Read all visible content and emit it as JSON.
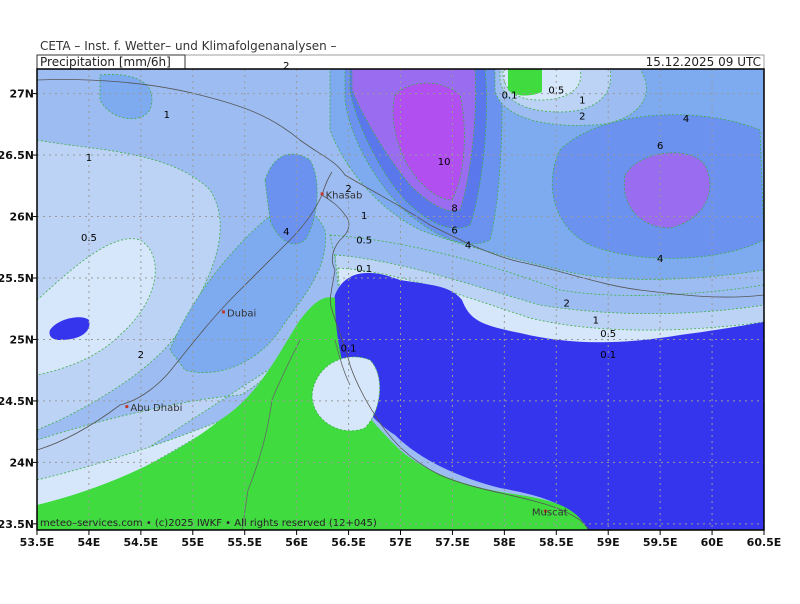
{
  "header": {
    "institute": "CETA – Inst. f. Wetter– und Klimafolgenanalysen –",
    "parameter": "Precipitation [mm/6h]",
    "datetime": "15.12.2025 09 UTC"
  },
  "footer": {
    "credit": "meteo–services.com • (c)2025 IWKF • All rights reserved (12+045)"
  },
  "axes": {
    "lon_ticks": [
      "53.5E",
      "54E",
      "54.5E",
      "55E",
      "55.5E",
      "56E",
      "56.5E",
      "57E",
      "57.5E",
      "58E",
      "58.5E",
      "59E",
      "59.5E",
      "60E",
      "60.5E"
    ],
    "lat_ticks": [
      "27N",
      "26.5N",
      "26N",
      "25.5N",
      "25N",
      "24.5N",
      "24N",
      "23.5N"
    ]
  },
  "colors": {
    "lt_0_1": "#3fdb3f",
    "r0_1_0_5": "#d6e6fb",
    "r0_5_1": "#bcd3f5",
    "r1_2": "#9dbdf2",
    "r2_4": "#7eaaf0",
    "r4_6": "#6b92ee",
    "r6_8": "#5a78ec",
    "r8_10": "#9a6cf0",
    "gt_10": "#b24ff0",
    "heavy_blue": "#3535ee"
  },
  "cities": [
    {
      "name": "Khasab",
      "lon": 56.25,
      "lat": 26.18
    },
    {
      "name": "Dubai",
      "lon": 55.3,
      "lat": 25.22
    },
    {
      "name": "Abu Dhabi",
      "lon": 54.37,
      "lat": 24.45
    },
    {
      "name": "Muscat",
      "lon": 58.4,
      "lat": 23.6
    }
  ],
  "contour_labels": [
    {
      "text": "2",
      "lon": 55.9,
      "lat": 27.2
    },
    {
      "text": "1",
      "lon": 54.75,
      "lat": 26.8
    },
    {
      "text": "1",
      "lon": 54.0,
      "lat": 26.45
    },
    {
      "text": "0.5",
      "lon": 54.0,
      "lat": 25.8
    },
    {
      "text": "4",
      "lon": 55.9,
      "lat": 25.85
    },
    {
      "text": "2",
      "lon": 54.5,
      "lat": 24.85
    },
    {
      "text": "2",
      "lon": 56.5,
      "lat": 26.2
    },
    {
      "text": "1",
      "lon": 56.65,
      "lat": 25.98
    },
    {
      "text": "0.5",
      "lon": 56.65,
      "lat": 25.78
    },
    {
      "text": "0.1",
      "lon": 56.65,
      "lat": 25.55
    },
    {
      "text": "0.1",
      "lon": 56.5,
      "lat": 24.9
    },
    {
      "text": "10",
      "lon": 57.42,
      "lat": 26.42
    },
    {
      "text": "8",
      "lon": 57.52,
      "lat": 26.04
    },
    {
      "text": "6",
      "lon": 57.52,
      "lat": 25.86
    },
    {
      "text": "4",
      "lon": 57.65,
      "lat": 25.74
    },
    {
      "text": "0.1",
      "lon": 58.05,
      "lat": 26.96
    },
    {
      "text": "0.5",
      "lon": 58.5,
      "lat": 27.0
    },
    {
      "text": "1",
      "lon": 58.75,
      "lat": 26.92
    },
    {
      "text": "2",
      "lon": 58.75,
      "lat": 26.79
    },
    {
      "text": "4",
      "lon": 59.75,
      "lat": 26.77
    },
    {
      "text": "6",
      "lon": 59.5,
      "lat": 26.55
    },
    {
      "text": "4",
      "lon": 59.5,
      "lat": 25.63
    },
    {
      "text": "2",
      "lon": 58.6,
      "lat": 25.27
    },
    {
      "text": "1",
      "lon": 58.88,
      "lat": 25.13
    },
    {
      "text": "0.5",
      "lon": 59.0,
      "lat": 25.02
    },
    {
      "text": "0.1",
      "lon": 59.0,
      "lat": 24.85
    }
  ]
}
